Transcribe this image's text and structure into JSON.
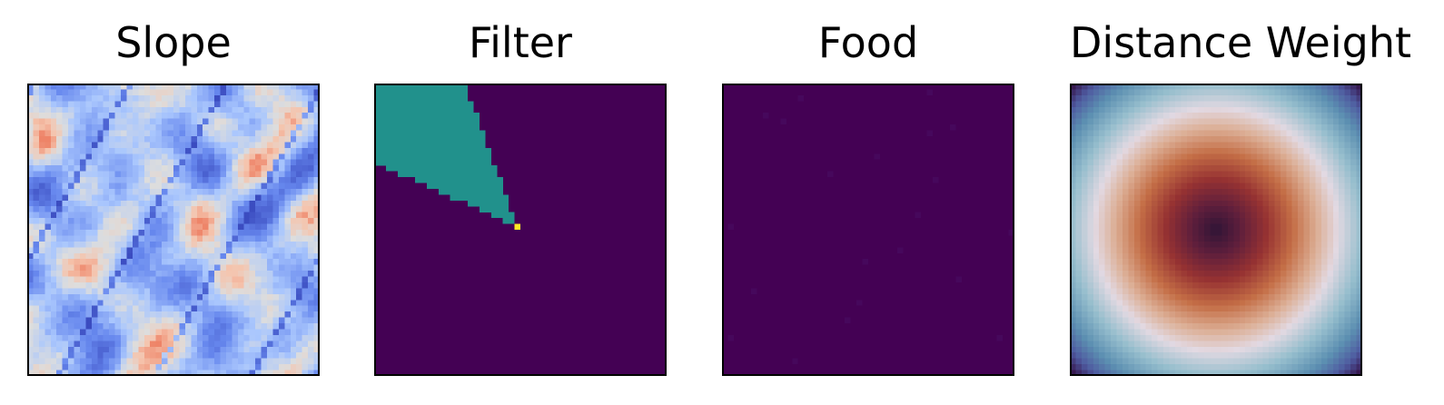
{
  "chart_data": [
    {
      "type": "heatmap",
      "title": "Slope",
      "colormap": "coolwarm",
      "grid": false,
      "xlabel": "",
      "ylabel": "",
      "description_colors": [
        "#3b4cc0",
        "#7396f5",
        "#b3cdfb",
        "#dcdcdc",
        "#f4c4ad",
        "#ee8468"
      ]
    },
    {
      "type": "heatmap",
      "title": "Filter",
      "colormap": "viridis",
      "grid": false,
      "xlabel": "",
      "ylabel": "",
      "values": {
        "background": 0,
        "sector": 1,
        "origin": 2
      },
      "colors": {
        "background": "#440154",
        "sector": "#21918c",
        "origin": "#fde725"
      }
    },
    {
      "type": "heatmap",
      "title": "Food",
      "colormap": "viridis",
      "grid": false,
      "xlabel": "",
      "ylabel": "",
      "colors": {
        "background": "#440154",
        "food": "#46085c"
      }
    },
    {
      "type": "heatmap",
      "title": "Distance Weight",
      "colormap": "twilight",
      "grid": false,
      "xlabel": "",
      "ylabel": "",
      "colors": {
        "center": "#2f1436",
        "inner": "#b4432f",
        "ring": "#e2d9e2",
        "mid": "#5c8fb1",
        "edge": "#3b1a5a"
      }
    }
  ]
}
